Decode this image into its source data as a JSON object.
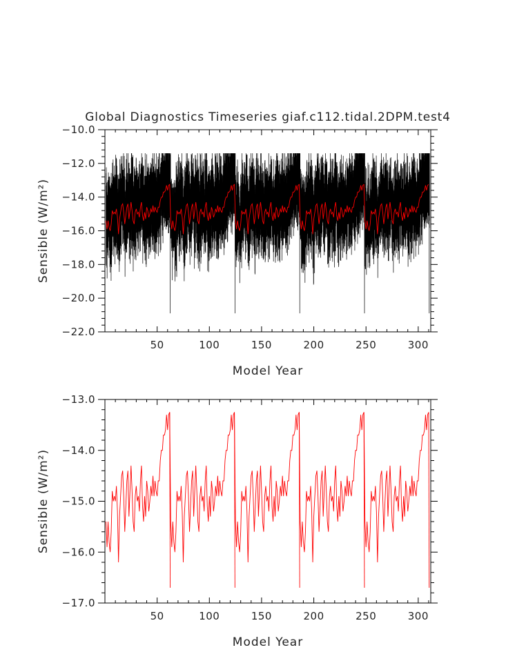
{
  "colors": {
    "monthly_series": "#000000",
    "annual_series": "#ff0000",
    "axes": "#000000"
  },
  "chart_data": [
    {
      "type": "line",
      "title": "Global Diagnostics Timeseries giaf.c112.tidal.2DPM.test4",
      "xlabel": "Model Year",
      "ylabel": "Sensible (W/m²)",
      "xlim": [
        0,
        312
      ],
      "ylim": [
        -22.0,
        -10.0
      ],
      "x_ticks": [
        50,
        100,
        150,
        200,
        250,
        300
      ],
      "y_ticks": [
        -22.0,
        -20.0,
        -18.0,
        -16.0,
        -14.0,
        -12.0,
        -10.0
      ],
      "y_tick_labels": [
        "−22.0",
        "−20.0",
        "−18.0",
        "−16.0",
        "−14.0",
        "−12.0",
        "−10.0"
      ],
      "grid": false,
      "legend": "none",
      "cycle": {
        "period_years": 62,
        "ramp_start_year": 52,
        "drop_years": [
          62,
          124,
          186,
          248,
          310
        ],
        "drop_min": -20.9
      },
      "series": [
        {
          "role": "monthly",
          "color": "#000000",
          "x_range": [
            1,
            310
          ],
          "mean": -15.0,
          "low_envelope": -18.0,
          "high_envelope": -13.0,
          "peak_before_drop": -11.5
        },
        {
          "role": "annual",
          "color": "#ff0000",
          "x": [
            1,
            2,
            3,
            4,
            5,
            6,
            7,
            8,
            9,
            10,
            11,
            12,
            13,
            14,
            15,
            16,
            17,
            18,
            19,
            20,
            21,
            22,
            23,
            24,
            25,
            26,
            27,
            28,
            29,
            30,
            31,
            32,
            33,
            34,
            35,
            36,
            37,
            38,
            39,
            40,
            41,
            42,
            43,
            44,
            45,
            46,
            47,
            48,
            49,
            50,
            51,
            52,
            53,
            54,
            55,
            56,
            57,
            58,
            59,
            60,
            61,
            62
          ],
          "y": [
            -15.4,
            -15.9,
            -15.4,
            -15.8,
            -16.0,
            -15.6,
            -14.8,
            -15.0,
            -14.9,
            -15.0,
            -14.7,
            -15.2,
            -16.2,
            -15.3,
            -14.9,
            -14.5,
            -14.4,
            -14.9,
            -15.6,
            -15.1,
            -14.6,
            -14.4,
            -15.3,
            -14.8,
            -14.3,
            -14.8,
            -15.4,
            -15.6,
            -14.9,
            -14.7,
            -15.0,
            -14.9,
            -15.2,
            -14.6,
            -14.3,
            -15.1,
            -15.4,
            -14.9,
            -15.3,
            -14.6,
            -14.8,
            -15.2,
            -15.0,
            -14.7,
            -14.9,
            -14.5,
            -14.9,
            -14.6,
            -14.8,
            -14.9,
            -14.6,
            -14.6,
            -14.2,
            -14.0,
            -14.0,
            -13.7,
            -13.7,
            -13.6,
            -13.3,
            -13.6,
            -13.3,
            -13.25
          ]
        }
      ]
    },
    {
      "type": "line",
      "title": "",
      "xlabel": "Model Year",
      "ylabel": "Sensible (W/m²)",
      "xlim": [
        0,
        312
      ],
      "ylim": [
        -17.0,
        -13.0
      ],
      "x_ticks": [
        50,
        100,
        150,
        200,
        250,
        300
      ],
      "y_ticks": [
        -17.0,
        -16.0,
        -15.0,
        -14.0,
        -13.0
      ],
      "y_tick_labels": [
        "−17.0",
        "−16.0",
        "−15.0",
        "−14.0",
        "−13.0"
      ],
      "grid": false,
      "legend": "none",
      "cycle": {
        "period_years": 62,
        "drop_years": [
          62,
          124,
          186,
          248,
          310
        ],
        "drop_value": -16.7
      },
      "series": [
        {
          "role": "annual",
          "color": "#ff0000",
          "x": [
            1,
            2,
            3,
            4,
            5,
            6,
            7,
            8,
            9,
            10,
            11,
            12,
            13,
            14,
            15,
            16,
            17,
            18,
            19,
            20,
            21,
            22,
            23,
            24,
            25,
            26,
            27,
            28,
            29,
            30,
            31,
            32,
            33,
            34,
            35,
            36,
            37,
            38,
            39,
            40,
            41,
            42,
            43,
            44,
            45,
            46,
            47,
            48,
            49,
            50,
            51,
            52,
            53,
            54,
            55,
            56,
            57,
            58,
            59,
            60,
            61,
            62
          ],
          "y": [
            -15.4,
            -15.9,
            -15.4,
            -15.8,
            -16.0,
            -15.6,
            -14.8,
            -15.0,
            -14.9,
            -15.0,
            -14.7,
            -15.2,
            -16.2,
            -15.3,
            -14.9,
            -14.5,
            -14.4,
            -14.9,
            -15.6,
            -15.1,
            -14.6,
            -14.4,
            -15.3,
            -14.8,
            -14.3,
            -14.8,
            -15.4,
            -15.6,
            -14.9,
            -14.7,
            -15.0,
            -14.9,
            -15.2,
            -14.6,
            -14.3,
            -15.1,
            -15.4,
            -14.9,
            -15.3,
            -14.6,
            -14.8,
            -15.2,
            -15.0,
            -14.7,
            -14.9,
            -14.5,
            -14.9,
            -14.6,
            -14.8,
            -14.9,
            -14.6,
            -14.6,
            -14.2,
            -14.0,
            -14.0,
            -13.7,
            -13.7,
            -13.6,
            -13.3,
            -13.6,
            -13.3,
            -13.25
          ]
        }
      ]
    }
  ]
}
